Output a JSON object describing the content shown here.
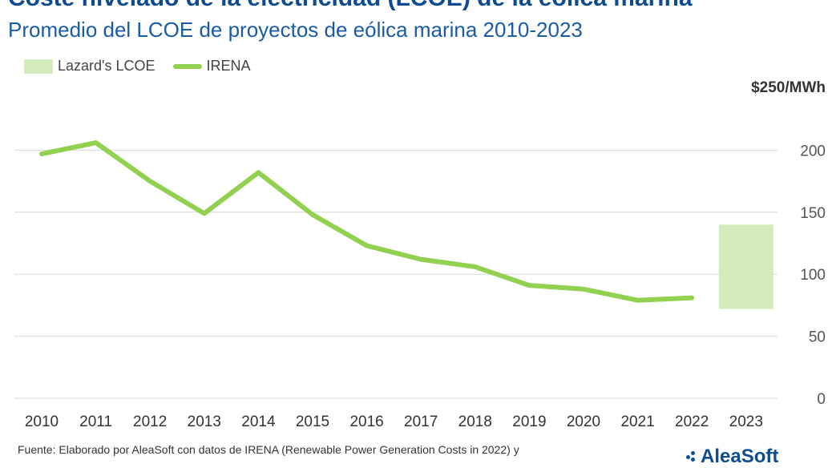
{
  "header": {
    "title": "Coste nivelado de la electricidad (LCOE) de la eólica marina",
    "subtitle": "Promedio del LCOE de proyectos de eólica marina 2010-2023"
  },
  "footer": {
    "source": "Fuente: Elaborado por AleaSoft con datos de IRENA (Renewable Power Generation Costs in 2022) y",
    "logo": "AleaSoft"
  },
  "colors": {
    "irena_line": "#92d050",
    "lazard_box": "#d4ecbb",
    "grid": "#d9d9d9",
    "title": "#0f4c8f"
  },
  "chart_data": {
    "type": "line",
    "title": "Coste nivelado de la electricidad (LCOE) de la eólica marina",
    "subtitle": "Promedio del LCOE de proyectos de eólica marina 2010-2023",
    "unit_label": "$250/MWh",
    "categories": [
      "2010",
      "2011",
      "2012",
      "2013",
      "2014",
      "2015",
      "2016",
      "2017",
      "2018",
      "2019",
      "2020",
      "2021",
      "2022",
      "2023"
    ],
    "y_ticks": [
      "0",
      "50",
      "100",
      "150",
      "200"
    ],
    "ylim": [
      0,
      250
    ],
    "grid": true,
    "legend_position": "top-left",
    "legend": [
      "Lazard's LCOE",
      "IRENA"
    ],
    "series": [
      {
        "name": "IRENA",
        "type": "line",
        "values": [
          197,
          206,
          175,
          149,
          182,
          148,
          123,
          112,
          106,
          91,
          88,
          79,
          81,
          null
        ]
      },
      {
        "name": "Lazard's LCOE",
        "type": "range",
        "category": "2023",
        "low": 72,
        "high": 140
      }
    ]
  }
}
